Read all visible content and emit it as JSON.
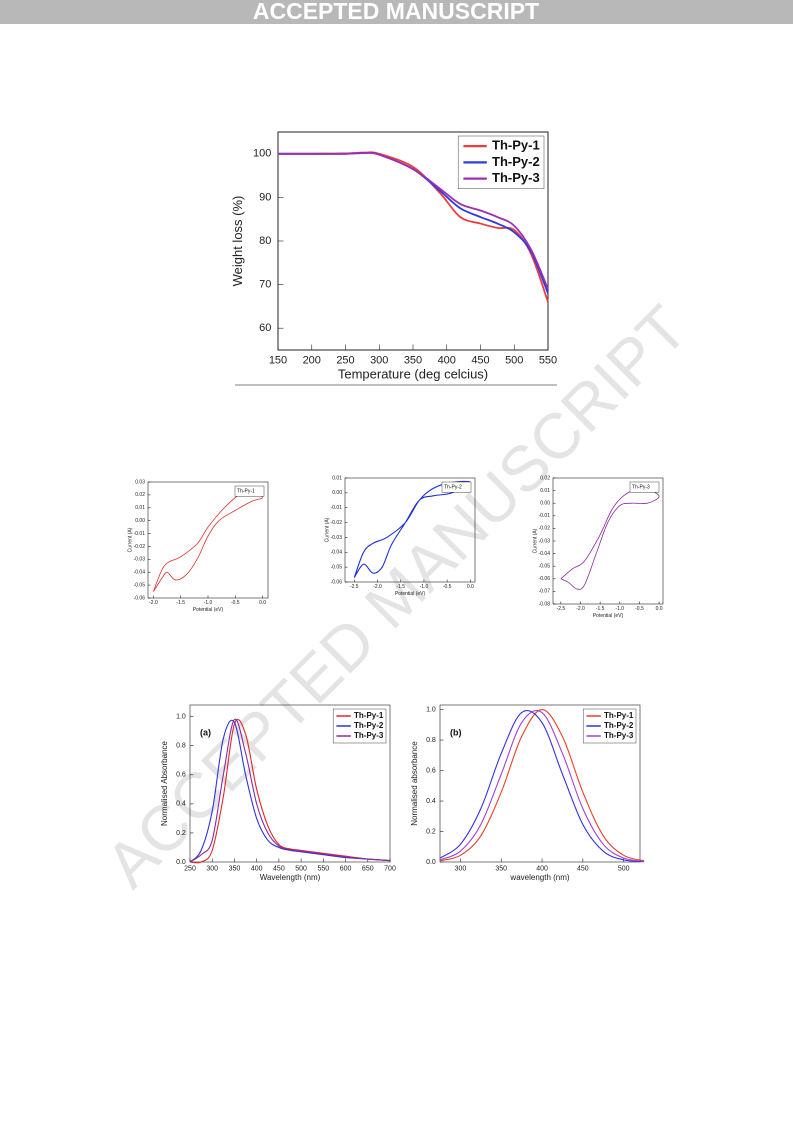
{
  "header": "ACCEPTED MANUSCRIPT",
  "watermark": "ACCEPTED MANUSCRIPT",
  "chart_data": [
    {
      "type": "line",
      "xlabel": "Temperature (deg celcius)",
      "ylabel": "Weight loss (%)",
      "x": [
        150,
        200,
        250,
        280,
        300,
        350,
        390,
        420,
        450,
        475,
        500,
        525,
        550
      ],
      "series": [
        {
          "name": "Th-Py-1",
          "color": "#f03c3c",
          "values": [
            100,
            100,
            100.1,
            100.3,
            100,
            97,
            91,
            85.5,
            84,
            83,
            82.5,
            77,
            66
          ]
        },
        {
          "name": "Th-Py-2",
          "color": "#2b3de0",
          "values": [
            100,
            100,
            100,
            100.2,
            99.8,
            96.5,
            91.5,
            87.5,
            85.5,
            84,
            82,
            77.5,
            68
          ]
        },
        {
          "name": "Th-Py-3",
          "color": "#9b30b0",
          "values": [
            100,
            100,
            100,
            100.2,
            99.8,
            96.5,
            92,
            88.5,
            87,
            85.5,
            83.5,
            78,
            69
          ]
        }
      ],
      "xlim": [
        150,
        550
      ],
      "xticks": [
        150,
        200,
        250,
        300,
        350,
        400,
        450,
        500,
        550
      ],
      "ylim": [
        55,
        105
      ],
      "yticks": [
        60,
        70,
        80,
        90,
        100
      ],
      "legend": "upper right",
      "legend_line": true
    },
    {
      "type": "line",
      "xlabel": "Potential (eV)",
      "ylabel": "Current (A)",
      "x": [
        -2.0,
        -1.8,
        -1.5,
        -1.2,
        -1.0,
        -0.7,
        -0.4,
        -0.2,
        0.0,
        -0.2,
        -0.5,
        -0.8,
        -1.0,
        -1.2,
        -1.4,
        -1.6,
        -1.75,
        -1.85,
        -2.0
      ],
      "series": [
        {
          "name": "Th-Py-1",
          "color": "#e03030",
          "values": [
            -0.055,
            -0.035,
            -0.028,
            -0.018,
            -0.005,
            0.01,
            0.021,
            0.022,
            0.018,
            0.015,
            0.008,
            0.0,
            -0.012,
            -0.03,
            -0.042,
            -0.046,
            -0.04,
            -0.045,
            -0.055
          ]
        }
      ],
      "xlim": [
        -2.1,
        0.1
      ],
      "xticks": [
        {
          "value": -2.0,
          "label": "-2.0"
        },
        -1.5,
        {
          "value": -1.0,
          "label": "-1.0"
        },
        -0.5,
        {
          "value": 0.0,
          "label": "0.0"
        }
      ],
      "ylim": [
        -0.06,
        0.03
      ],
      "yticks": [
        0.03,
        0.02,
        0.01,
        {
          "value": 0,
          "label": "0.00"
        },
        -0.01,
        -0.02,
        -0.03,
        -0.04,
        -0.05,
        -0.06
      ],
      "legend": "upper right",
      "legend_line": false
    },
    {
      "type": "line",
      "xlabel": "Potential (eV)",
      "ylabel": "Current (A)",
      "x": [
        -2.5,
        -2.3,
        -2.1,
        -1.8,
        -1.4,
        -1.1,
        -0.8,
        -0.4,
        0.0,
        -0.4,
        -0.8,
        -1.1,
        -1.4,
        -1.7,
        -1.9,
        -2.1,
        -2.3,
        -2.5
      ],
      "series": [
        {
          "name": "Th-Py-2",
          "color": "#1c2fd8",
          "values": [
            -0.057,
            -0.04,
            -0.034,
            -0.03,
            -0.02,
            -0.005,
            0.003,
            0.007,
            0.007,
            0.0,
            -0.002,
            -0.005,
            -0.02,
            -0.035,
            -0.05,
            -0.054,
            -0.048,
            -0.057
          ]
        }
      ],
      "xlim": [
        -2.7,
        0.1
      ],
      "xticks": [
        -2.5,
        {
          "value": -2.0,
          "label": "-2.0"
        },
        -1.5,
        {
          "value": -1.0,
          "label": "-1.0"
        },
        -0.5,
        {
          "value": 0.0,
          "label": "0.0"
        }
      ],
      "ylim": [
        -0.06,
        0.01
      ],
      "yticks": [
        0.01,
        {
          "value": 0,
          "label": "0.00"
        },
        -0.01,
        -0.02,
        -0.03,
        -0.04,
        -0.05,
        -0.06
      ],
      "legend": "upper right",
      "legend_line": false
    },
    {
      "type": "line",
      "xlabel": "Potential (eV)",
      "ylabel": "Current (A)",
      "x": [
        -2.5,
        -2.2,
        -1.9,
        -1.5,
        -1.2,
        -0.9,
        -0.5,
        -0.2,
        0.0,
        -0.3,
        -0.7,
        -1.0,
        -1.3,
        -1.6,
        -1.9,
        -2.1,
        -2.3,
        -2.5
      ],
      "series": [
        {
          "name": "Th-Py-3",
          "color": "#8a2a9a",
          "values": [
            -0.06,
            -0.052,
            -0.046,
            -0.025,
            -0.005,
            0.006,
            0.012,
            0.01,
            0.005,
            0.0,
            0.0,
            -0.002,
            -0.015,
            -0.04,
            -0.065,
            -0.068,
            -0.063,
            -0.06
          ]
        }
      ],
      "xlim": [
        -2.7,
        0.1
      ],
      "xticks": [
        -2.5,
        {
          "value": -2.0,
          "label": "-2.0"
        },
        -1.5,
        {
          "value": -1.0,
          "label": "-1.0"
        },
        -0.5,
        {
          "value": 0.0,
          "label": "0.0"
        }
      ],
      "ylim": [
        -0.08,
        0.02
      ],
      "yticks": [
        0.02,
        0.01,
        {
          "value": 0,
          "label": "0.00"
        },
        -0.01,
        -0.02,
        -0.03,
        -0.04,
        -0.05,
        -0.06,
        -0.07,
        -0.08
      ],
      "legend": "upper right",
      "legend_line": false
    },
    {
      "type": "line",
      "xlabel": "Wavelength (nm)",
      "ylabel": "Normalised Absorbance",
      "annotation": "(a)",
      "x": [
        250,
        275,
        300,
        325,
        350,
        375,
        400,
        425,
        450,
        475,
        500,
        550,
        600,
        650,
        700
      ],
      "series": [
        {
          "name": "Th-Py-1",
          "color": "#e02828",
          "values": [
            0,
            0,
            0.08,
            0.45,
            0.95,
            0.88,
            0.5,
            0.25,
            0.12,
            0.09,
            0.08,
            0.06,
            0.04,
            0.02,
            0.01
          ]
        },
        {
          "name": "Th-Py-2",
          "color": "#2a36d8",
          "values": [
            0,
            0.08,
            0.35,
            0.85,
            0.96,
            0.6,
            0.3,
            0.15,
            0.1,
            0.08,
            0.07,
            0.05,
            0.03,
            0.02,
            0.01
          ]
        },
        {
          "name": "Th-Py-3",
          "color": "#8a2aa0",
          "values": [
            0,
            0.05,
            0.15,
            0.6,
            0.98,
            0.75,
            0.4,
            0.2,
            0.11,
            0.085,
            0.075,
            0.055,
            0.035,
            0.02,
            0.01
          ]
        }
      ],
      "xlim": [
        250,
        700
      ],
      "xticks": [
        250,
        300,
        350,
        400,
        450,
        500,
        550,
        600,
        650,
        700
      ],
      "ylim": [
        0,
        1.08
      ],
      "yticks": [
        {
          "value": 0,
          "label": "0.0"
        },
        0.2,
        0.4,
        0.6,
        0.8,
        {
          "value": 1,
          "label": "1.0"
        }
      ],
      "legend": "upper right",
      "legend_line": true
    },
    {
      "type": "line",
      "xlabel": "wavelength (nm)",
      "ylabel": "Normalised absorbance",
      "annotation": "(b)",
      "x": [
        275,
        300,
        325,
        350,
        375,
        400,
        425,
        450,
        475,
        500,
        525
      ],
      "series": [
        {
          "name": "Th-Py-1",
          "color": "#e8402a",
          "values": [
            0.008,
            0.044,
            0.172,
            0.458,
            0.823,
            1,
            0.823,
            0.458,
            0.172,
            0.044,
            0.008
          ]
        },
        {
          "name": "Th-Py-2",
          "color": "#3030e0",
          "values": [
            0.026,
            0.116,
            0.35,
            0.712,
            0.98,
            0.914,
            0.576,
            0.246,
            0.071,
            0.014,
            0.002
          ]
        },
        {
          "name": "Th-Py-3",
          "color": "#a040d8",
          "values": [
            0.014,
            0.071,
            0.246,
            0.576,
            0.914,
            0.98,
            0.712,
            0.35,
            0.116,
            0.026,
            0.004
          ]
        }
      ],
      "xlim": [
        275,
        520
      ],
      "xticks": [
        300,
        350,
        400,
        450,
        500
      ],
      "ylim": [
        0,
        1.03
      ],
      "yticks": [
        {
          "value": 0,
          "label": "0.0"
        },
        0.2,
        0.4,
        0.6,
        0.8,
        {
          "value": 1,
          "label": "1.0"
        }
      ],
      "legend": "upper right",
      "legend_line": true
    }
  ]
}
